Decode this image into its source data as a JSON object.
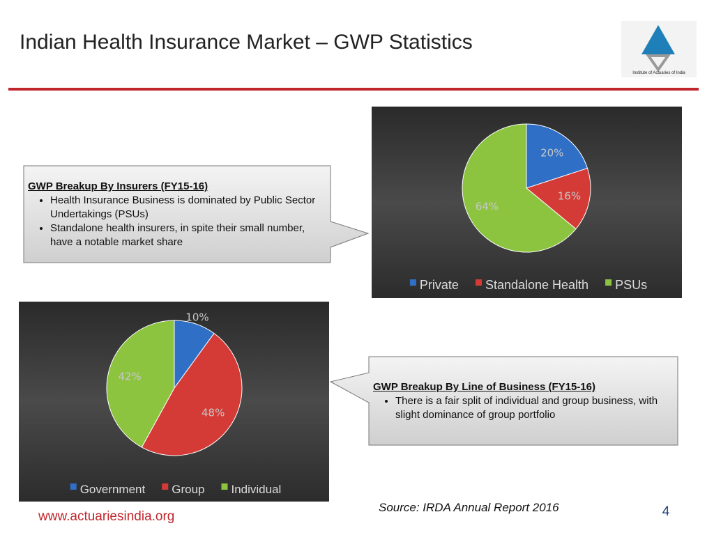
{
  "title": "Indian Health Insurance Market – GWP Statistics",
  "logo_text": "Institute of Actuaries of India",
  "callouts": [
    {
      "heading": "GWP Breakup By Insurers (FY15-16)",
      "bullets": [
        "Health Insurance Business is dominated by Public Sector Undertakings (PSUs)",
        "Standalone health insurers, in spite their small number, have a notable market share"
      ]
    },
    {
      "heading": "GWP Breakup By Line of Business (FY15-16)",
      "bullets": [
        "There is a fair split of individual and group business, with slight dominance of group portfolio"
      ]
    }
  ],
  "source": "Source: IRDA Annual Report 2016",
  "website": "www.actuariesindia.org",
  "page_number": 4,
  "chart_data": [
    {
      "type": "pie",
      "categories": [
        "Private",
        "Standalone Health",
        "PSUs"
      ],
      "values": [
        20,
        16,
        64
      ],
      "value_labels": [
        "20%",
        "16%",
        "64%"
      ],
      "colors": [
        "#2f6fc6",
        "#d43b36",
        "#8cc43f"
      ],
      "legend": "bottom"
    },
    {
      "type": "pie",
      "categories": [
        "Government",
        "Group",
        "Individual"
      ],
      "values": [
        10,
        48,
        42
      ],
      "value_labels": [
        "10%",
        "48%",
        "42%"
      ],
      "colors": [
        "#2f6fc6",
        "#d43b36",
        "#8cc43f"
      ],
      "legend": "bottom"
    }
  ]
}
